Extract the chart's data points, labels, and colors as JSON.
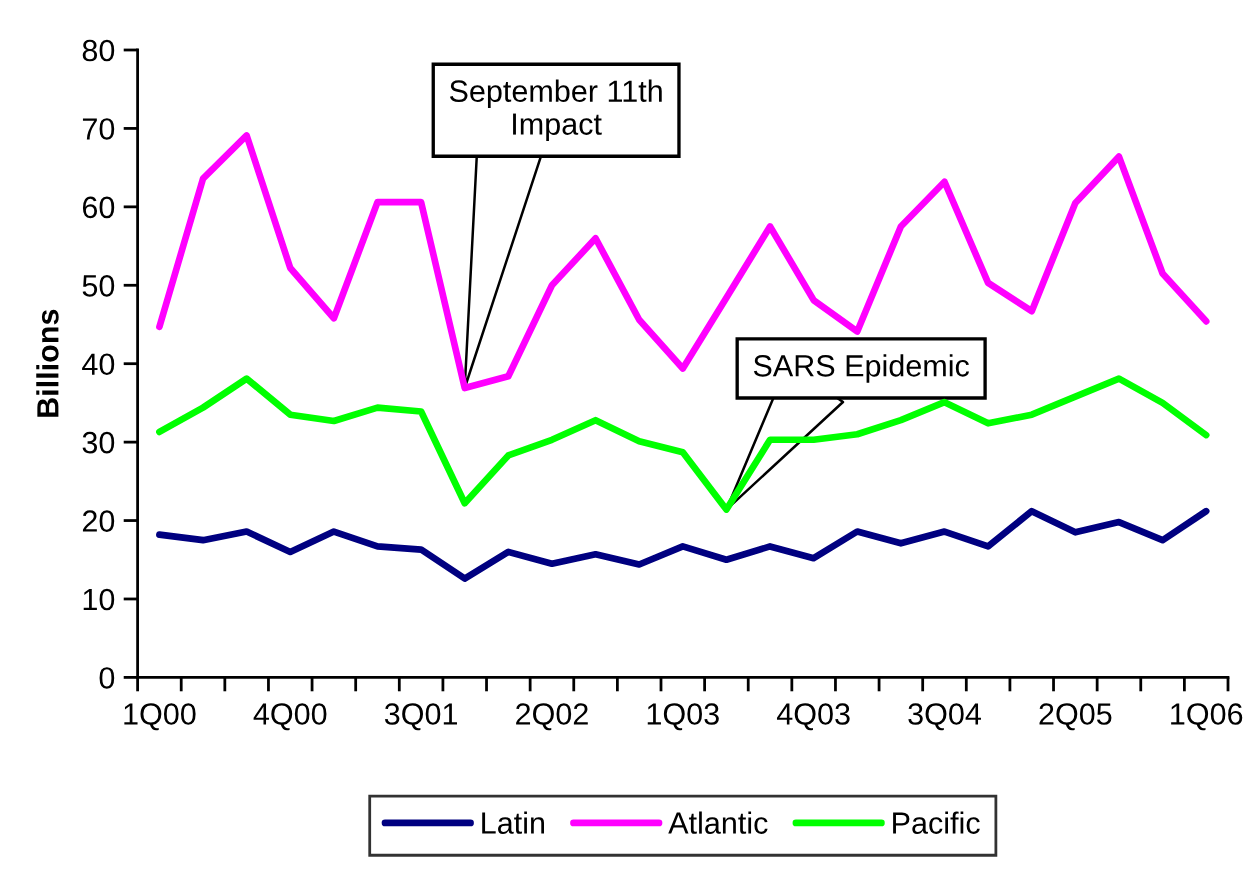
{
  "chart_data": {
    "type": "line",
    "categories": [
      "1Q00",
      null,
      null,
      "4Q00",
      null,
      null,
      "3Q01",
      null,
      null,
      "2Q02",
      null,
      null,
      "1Q03",
      null,
      null,
      "4Q03",
      null,
      null,
      "3Q04",
      null,
      null,
      "2Q05",
      null,
      null,
      "1Q06"
    ],
    "ylabel": "Billions",
    "ylim": [
      0,
      80
    ],
    "yticks": [
      0,
      10,
      20,
      30,
      40,
      50,
      60,
      70,
      80
    ],
    "grid": false,
    "legend": "bottom",
    "series": [
      {
        "name": "Latin",
        "color": "#000080",
        "values": [
          18.2,
          17.5,
          18.6,
          16.0,
          18.6,
          16.7,
          16.3,
          12.6,
          16.0,
          14.5,
          15.7,
          14.4,
          16.7,
          15.0,
          16.7,
          15.2,
          18.6,
          17.1,
          18.6,
          16.7,
          21.2,
          18.5,
          19.8,
          17.5,
          21.2
        ]
      },
      {
        "name": "Atlantic",
        "color": "#ff00ff",
        "values": [
          44.7,
          63.6,
          69.1,
          52.2,
          45.8,
          60.6,
          60.6,
          36.9,
          38.4,
          50.0,
          56.0,
          45.6,
          39.4,
          48.4,
          57.5,
          48.1,
          44.1,
          57.5,
          63.2,
          50.3,
          46.7,
          60.5,
          66.4,
          51.5,
          45.4
        ]
      },
      {
        "name": "Pacific",
        "color": "#00ff00",
        "values": [
          31.3,
          34.4,
          38.1,
          33.5,
          32.7,
          34.4,
          33.9,
          22.2,
          28.3,
          30.3,
          32.8,
          30.1,
          28.7,
          21.4,
          30.3,
          30.3,
          31.0,
          32.8,
          35.1,
          32.4,
          33.5,
          35.8,
          38.1,
          35.0,
          30.9
        ]
      }
    ],
    "annotations": [
      "September 11th\nImpact",
      "SARS Epidemic"
    ]
  }
}
